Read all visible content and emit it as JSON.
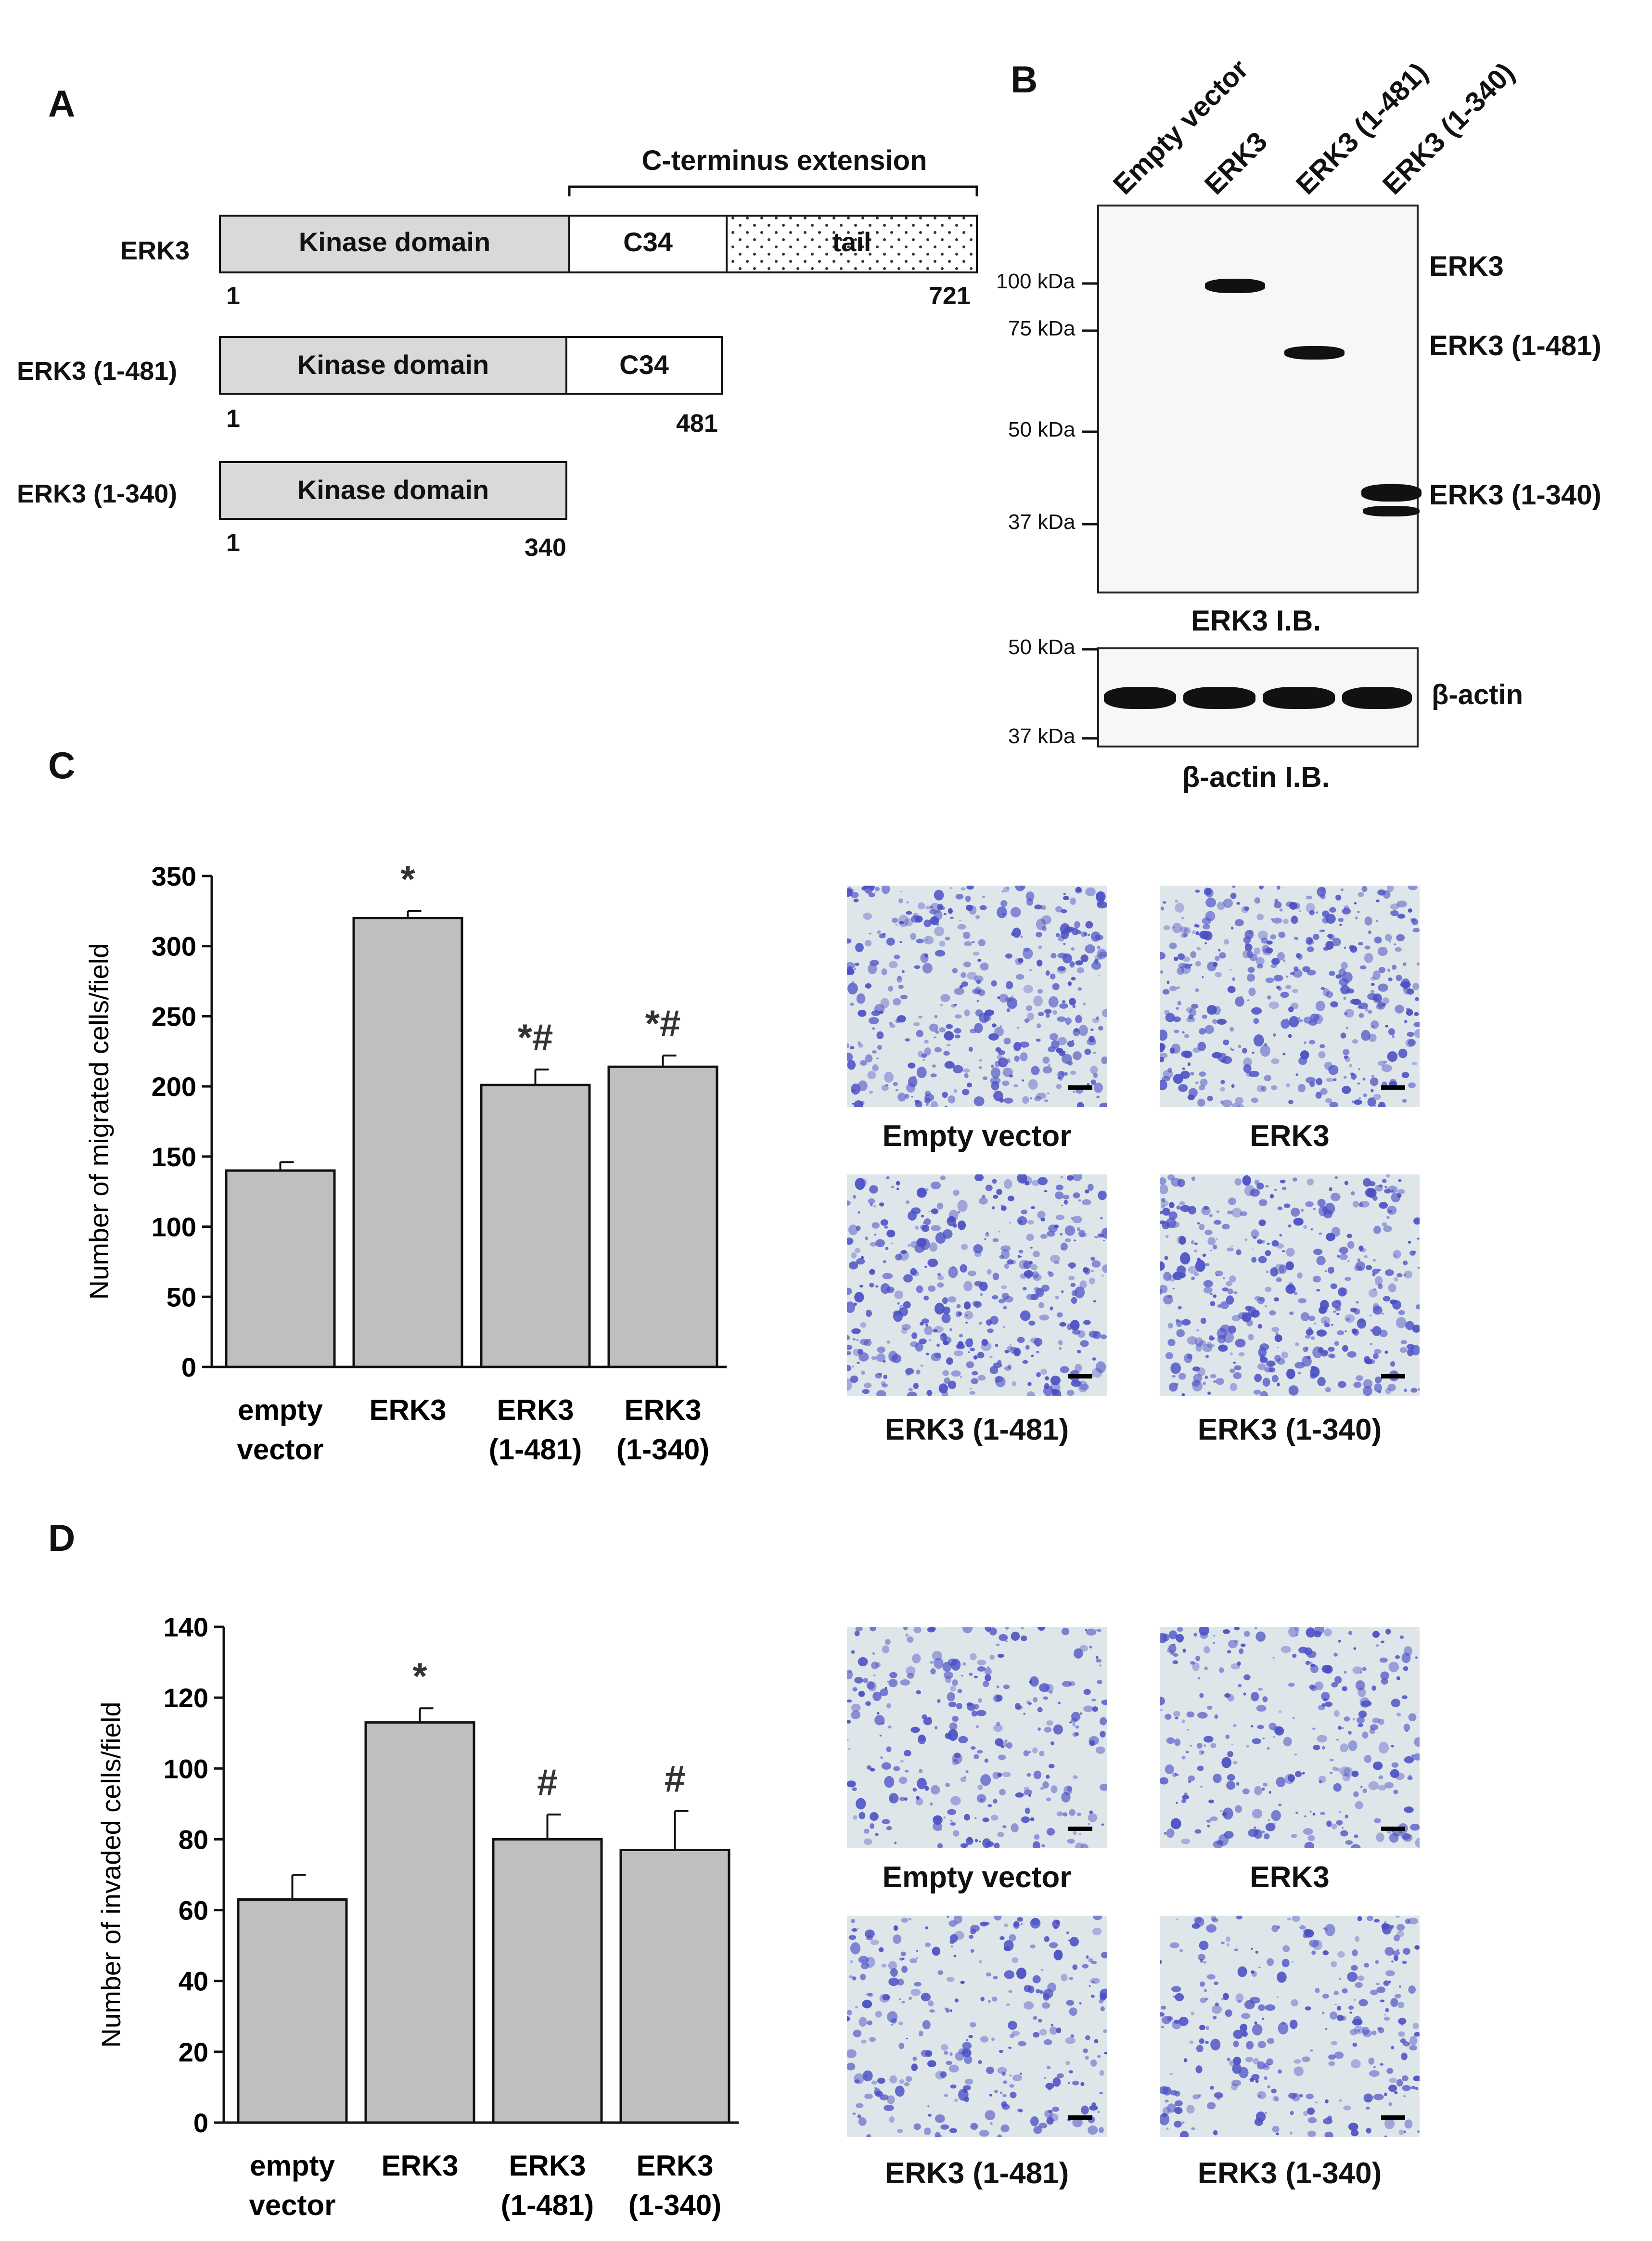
{
  "panels": {
    "A": {
      "letter": "A",
      "extension_label": "C-terminus extension",
      "constructs": [
        {
          "name": "ERK3",
          "kinase": "Kinase domain",
          "c34": "C34",
          "tail": "tail",
          "start": "1",
          "end": "721"
        },
        {
          "name": "ERK3 (1-481)",
          "kinase": "Kinase domain",
          "c34": "C34",
          "start": "1",
          "end": "481"
        },
        {
          "name": "ERK3 (1-340)",
          "kinase": "Kinase domain",
          "start": "1",
          "end": "340"
        }
      ]
    },
    "B": {
      "letter": "B",
      "lanes": [
        "Empty vector",
        "ERK3",
        "ERK3 (1-481)",
        "ERK3 (1-340)"
      ],
      "markers_top": [
        "100 kDa",
        "75 kDa",
        "50 kDa",
        "37 kDa"
      ],
      "band_labels": [
        "ERK3",
        "ERK3 (1-481)",
        "ERK3 (1-340)"
      ],
      "blot_caption": "ERK3 I.B.",
      "markers_bottom": [
        "50 kDa",
        "37 kDa"
      ],
      "actin_label": "β-actin",
      "actin_caption": "β-actin I.B."
    },
    "C": {
      "letter": "C",
      "micrograph_labels": [
        "Empty vector",
        "ERK3",
        "ERK3 (1-481)",
        "ERK3 (1-340)"
      ]
    },
    "D": {
      "letter": "D",
      "micrograph_labels": [
        "Empty vector",
        "ERK3",
        "ERK3 (1-481)",
        "ERK3 (1-340)"
      ]
    }
  },
  "colors": {
    "bar_fill": "#bfbfbf",
    "stain": "#4a4fc4",
    "micro_bg": "#dfe6ea"
  },
  "chart_data": [
    {
      "type": "bar",
      "panel": "C",
      "categories": [
        [
          "empty",
          "vector"
        ],
        [
          "ERK3"
        ],
        [
          "ERK3",
          "(1-481)"
        ],
        [
          "ERK3",
          "(1-340)"
        ]
      ],
      "values": [
        140,
        320,
        201,
        214
      ],
      "errors": [
        6,
        5,
        11,
        8
      ],
      "annotations": [
        "",
        "*",
        "*#",
        "*#"
      ],
      "ylabel": "Number of migrated cells/field",
      "ylim": [
        0,
        350
      ],
      "yticks": [
        "0",
        "50",
        "100",
        "150",
        "200",
        "250",
        "300",
        "350"
      ],
      "tick_values": [
        0,
        50,
        100,
        150,
        200,
        250,
        300,
        350
      ]
    },
    {
      "type": "bar",
      "panel": "D",
      "categories": [
        [
          "empty",
          "vector"
        ],
        [
          "ERK3"
        ],
        [
          "ERK3",
          "(1-481)"
        ],
        [
          "ERK3",
          "(1-340)"
        ]
      ],
      "values": [
        63,
        113,
        80,
        77
      ],
      "errors": [
        7,
        4,
        7,
        11
      ],
      "annotations": [
        "",
        "*",
        "#",
        "#"
      ],
      "ylabel": "Number of invaded cells/field",
      "ylim": [
        0,
        140
      ],
      "yticks": [
        "0",
        "20",
        "40",
        "60",
        "80",
        "100",
        "120",
        "140"
      ],
      "tick_values": [
        0,
        20,
        40,
        60,
        80,
        100,
        120,
        140
      ]
    }
  ]
}
